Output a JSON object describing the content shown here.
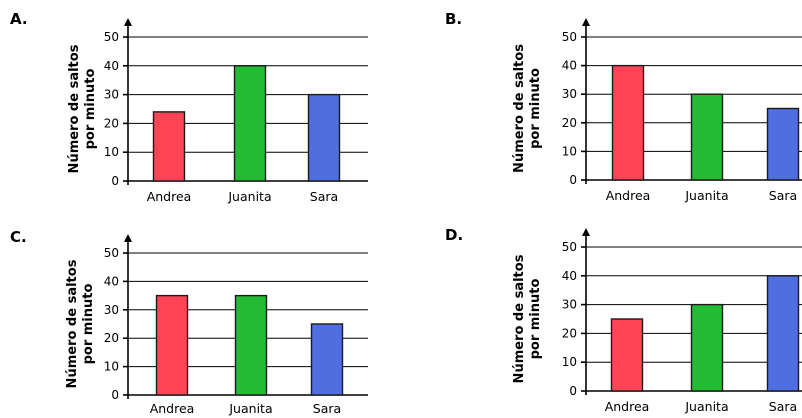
{
  "chart_data": [
    {
      "type": "bar",
      "panel_label": "A.",
      "categories": [
        "Andrea",
        "Juanita",
        "Sara"
      ],
      "values": [
        24,
        40,
        30
      ],
      "ylabel_lines": [
        "Número de saltos",
        "por minuto"
      ],
      "ylim": [
        0,
        50
      ],
      "yticks": [
        "0",
        "10",
        "20",
        "30",
        "40",
        "50"
      ],
      "grid": true,
      "colors": [
        "#ff4455",
        "#22bb33",
        "#4f6fe0"
      ]
    },
    {
      "type": "bar",
      "panel_label": "B.",
      "categories": [
        "Andrea",
        "Juanita",
        "Sara"
      ],
      "values": [
        40,
        30,
        25
      ],
      "ylabel_lines": [
        "Número de saltos",
        "por minuto"
      ],
      "ylim": [
        0,
        50
      ],
      "yticks": [
        "0",
        "10",
        "20",
        "30",
        "40",
        "50"
      ],
      "grid": true,
      "colors": [
        "#ff4455",
        "#22bb33",
        "#4f6fe0"
      ]
    },
    {
      "type": "bar",
      "panel_label": "C.",
      "categories": [
        "Andrea",
        "Juanita",
        "Sara"
      ],
      "values": [
        35,
        35,
        25
      ],
      "ylabel_lines": [
        "Número de saltos",
        "por minuto"
      ],
      "ylim": [
        0,
        50
      ],
      "yticks": [
        "0",
        "10",
        "20",
        "30",
        "40",
        "50"
      ],
      "grid": true,
      "colors": [
        "#ff4455",
        "#22bb33",
        "#4f6fe0"
      ]
    },
    {
      "type": "bar",
      "panel_label": "D.",
      "categories": [
        "Andrea",
        "Juanita",
        "Sara"
      ],
      "values": [
        25,
        30,
        40
      ],
      "ylabel_lines": [
        "Número de saltos",
        "por minuto"
      ],
      "ylim": [
        0,
        50
      ],
      "yticks": [
        "0",
        "10",
        "20",
        "30",
        "40",
        "50"
      ],
      "grid": true,
      "colors": [
        "#ff4455",
        "#22bb33",
        "#4f6fe0"
      ]
    }
  ]
}
